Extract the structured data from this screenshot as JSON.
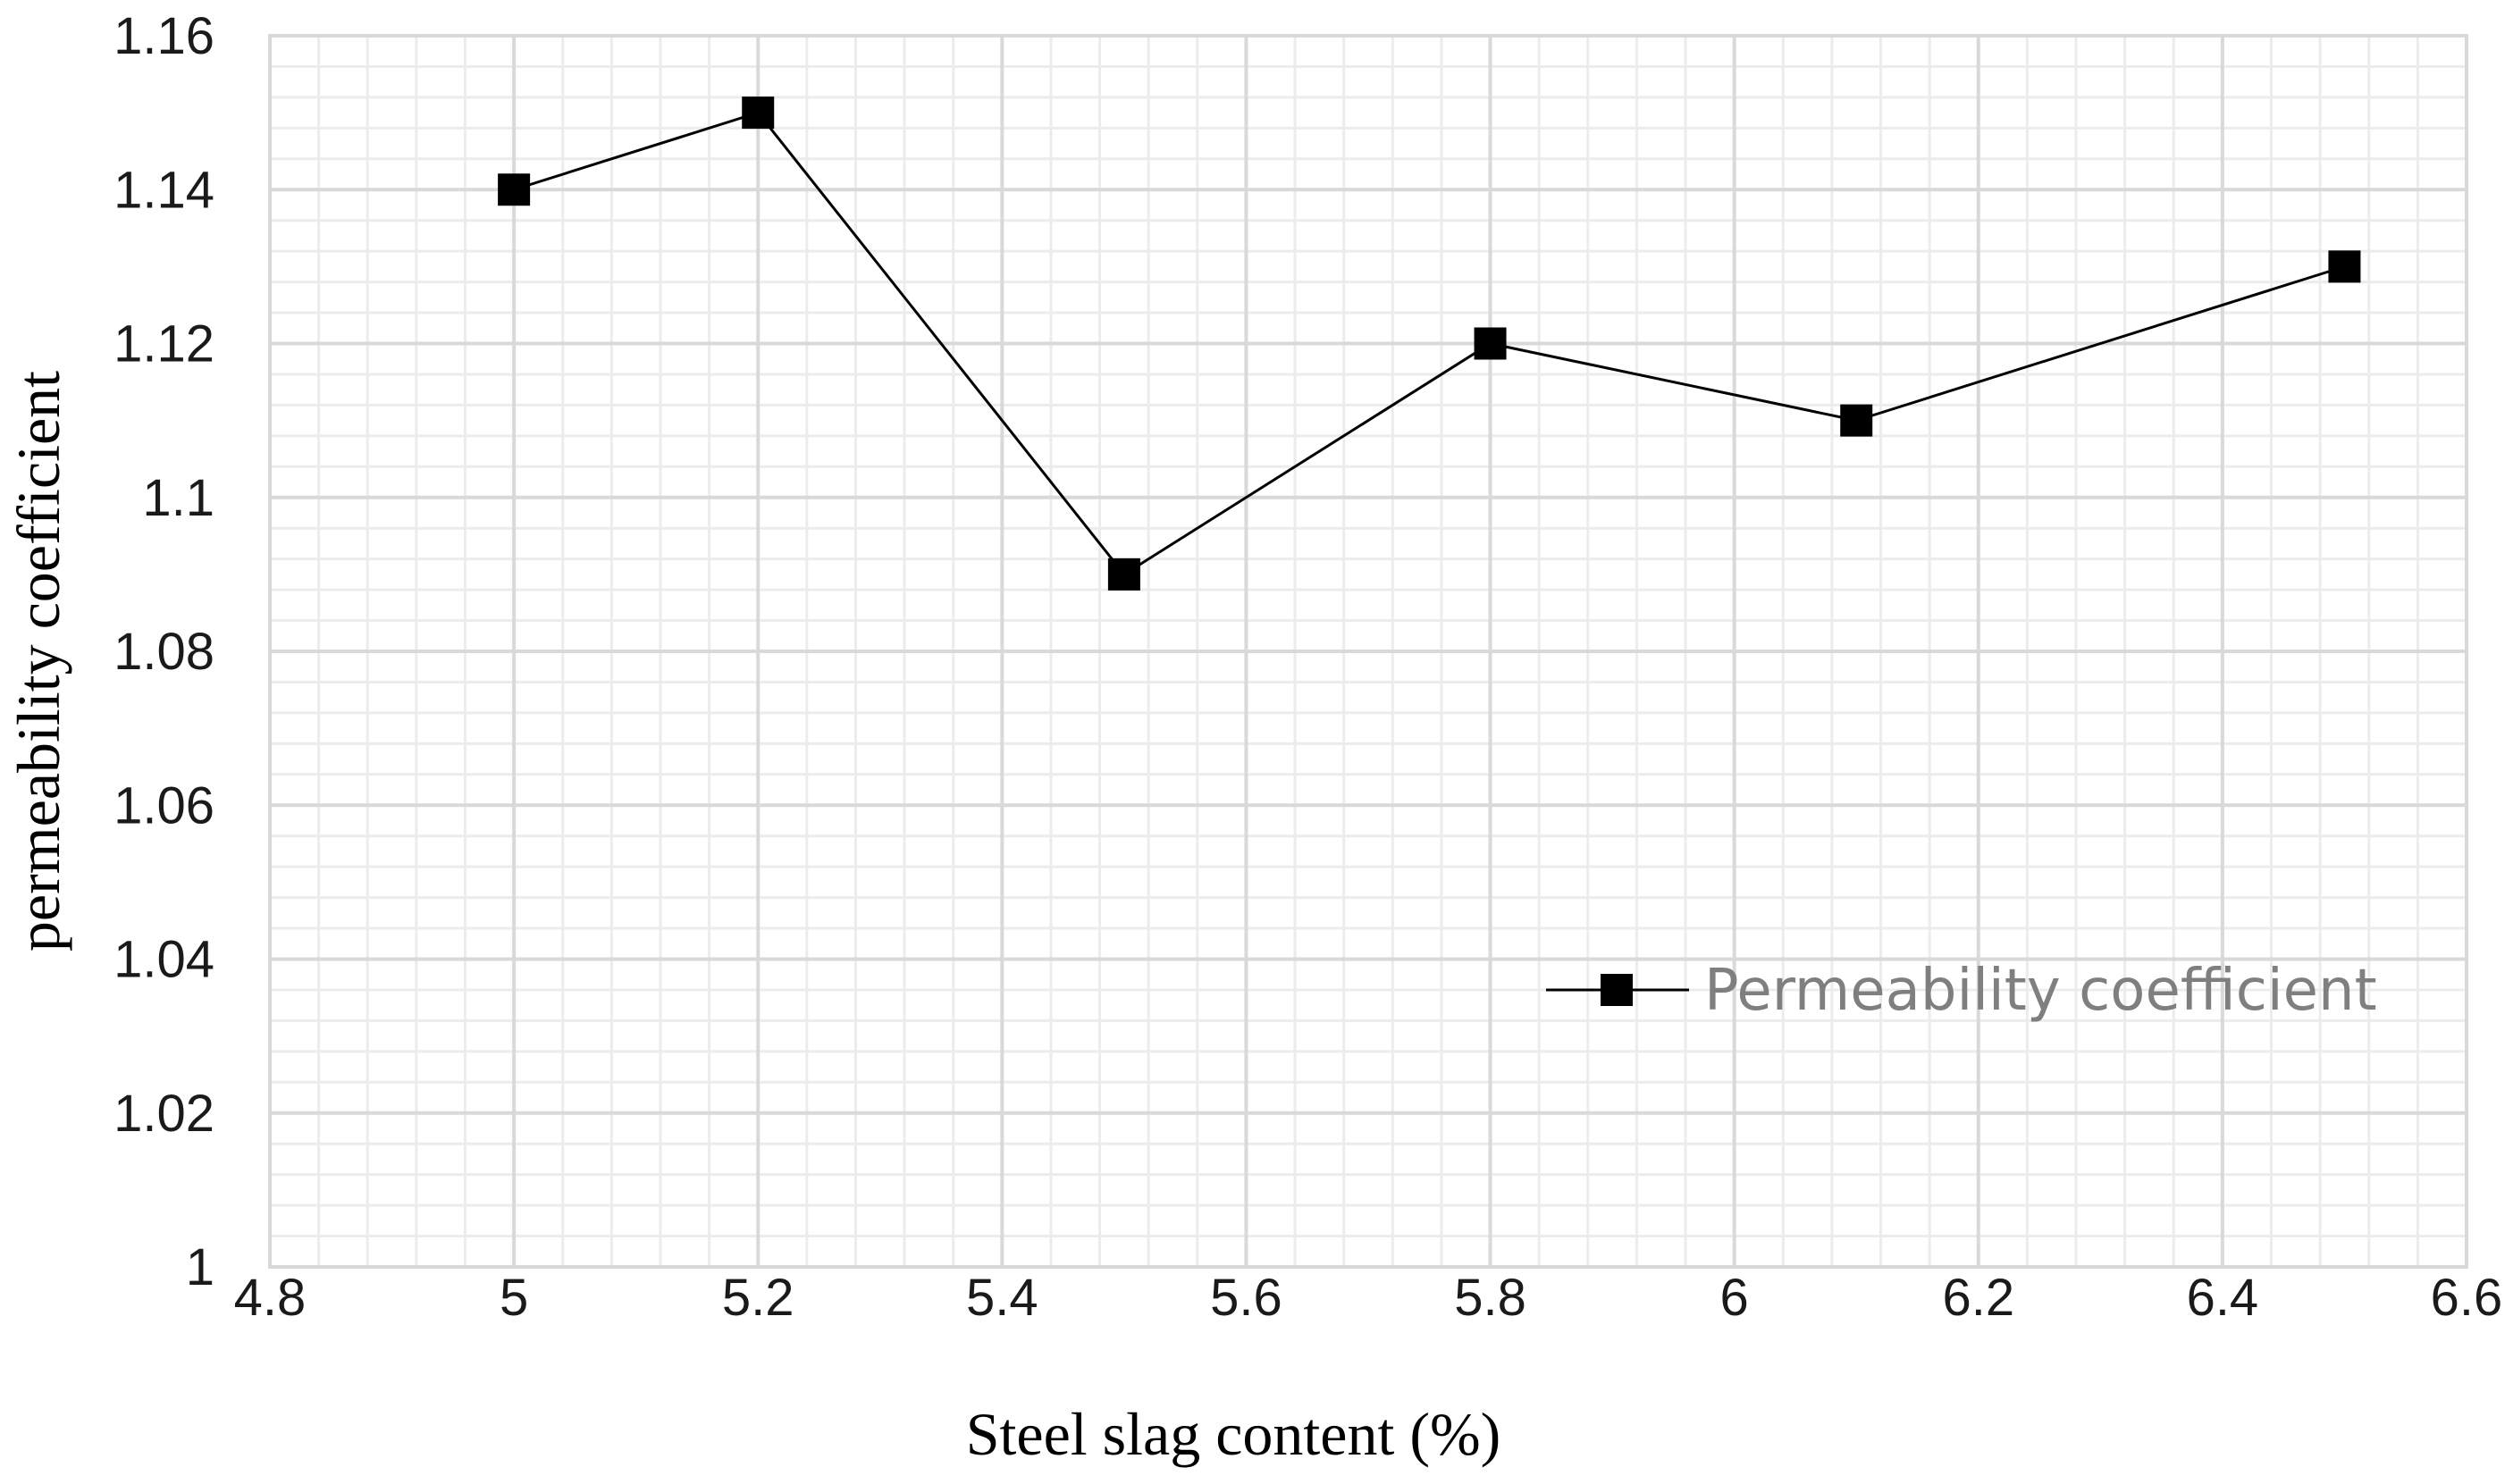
{
  "chart_data": {
    "type": "scatter",
    "mode": "lines+markers",
    "xlabel": "Steel slag content (%)",
    "ylabel": "permeability coefficient",
    "xlim": [
      4.8,
      6.6
    ],
    "ylim": [
      1.0,
      1.16
    ],
    "x_ticks": [
      4.8,
      5,
      5.2,
      5.4,
      5.6,
      5.8,
      6,
      6.2,
      6.4,
      6.6
    ],
    "x_tick_labels": [
      "4.8",
      "5",
      "5.2",
      "5.4",
      "5.6",
      "5.8",
      "6",
      "6.2",
      "6.4",
      "6.6"
    ],
    "y_ticks": [
      1.0,
      1.02,
      1.04,
      1.06,
      1.08,
      1.1,
      1.12,
      1.14,
      1.16
    ],
    "y_tick_labels": [
      "1",
      "1.02",
      "1.04",
      "1.06",
      "1.08",
      "1.1",
      "1.12",
      "1.14",
      "1.16"
    ],
    "grid": true,
    "legend_position": "right",
    "series": [
      {
        "name": "Permeability coefficient",
        "x": [
          5.0,
          5.2,
          5.5,
          5.8,
          6.1,
          6.5
        ],
        "y": [
          1.14,
          1.15,
          1.09,
          1.12,
          1.11,
          1.13
        ],
        "color": "#000000",
        "marker": "square"
      }
    ]
  }
}
